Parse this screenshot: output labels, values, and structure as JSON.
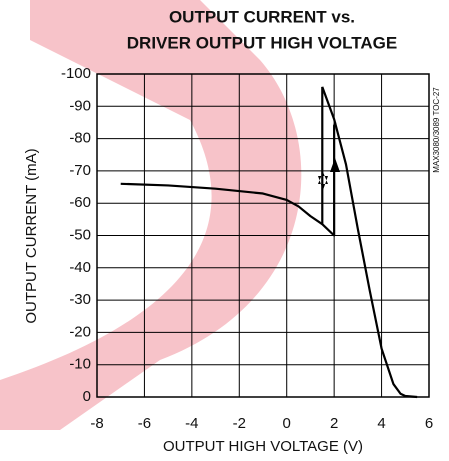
{
  "chart_data": {
    "type": "line",
    "title": [
      "OUTPUT CURRENT vs.",
      "DRIVER OUTPUT HIGH VOLTAGE"
    ],
    "x_label": "OUTPUT HIGH VOLTAGE (V)",
    "y_label": "OUTPUT CURRENT (mA)",
    "side_note": "MAX3080/3089 TOC-27",
    "xlim": [
      -8,
      6
    ],
    "xticks": [
      -8,
      -6,
      -4,
      -2,
      0,
      2,
      4,
      6
    ],
    "ylim": [
      0,
      -100
    ],
    "yticks": [
      0,
      -10,
      -20,
      -30,
      -40,
      -50,
      -60,
      -70,
      -80,
      -90,
      -100
    ],
    "grid": true,
    "series": [
      {
        "color": "#000000",
        "x": [
          -7,
          -5,
          -3,
          -1,
          0,
          0.5,
          1,
          1.5,
          2,
          2,
          2.05
        ],
        "values": [
          -66,
          -65.5,
          -64.5,
          -63,
          -61,
          -59,
          -56,
          -53.5,
          -50,
          -84,
          -85
        ]
      },
      {
        "color": "#000000",
        "x": [
          1.5,
          1.6,
          2,
          2.5,
          3,
          3.5,
          4,
          4.5,
          4.8,
          5,
          5.5
        ],
        "values": [
          -96,
          -94,
          -86,
          -72,
          -52,
          -33,
          -15,
          -4,
          -1,
          -0.3,
          0
        ]
      },
      {
        "color": "#000000",
        "x": [
          1.5,
          1.5
        ],
        "values": [
          -96,
          -53.5
        ]
      }
    ]
  }
}
